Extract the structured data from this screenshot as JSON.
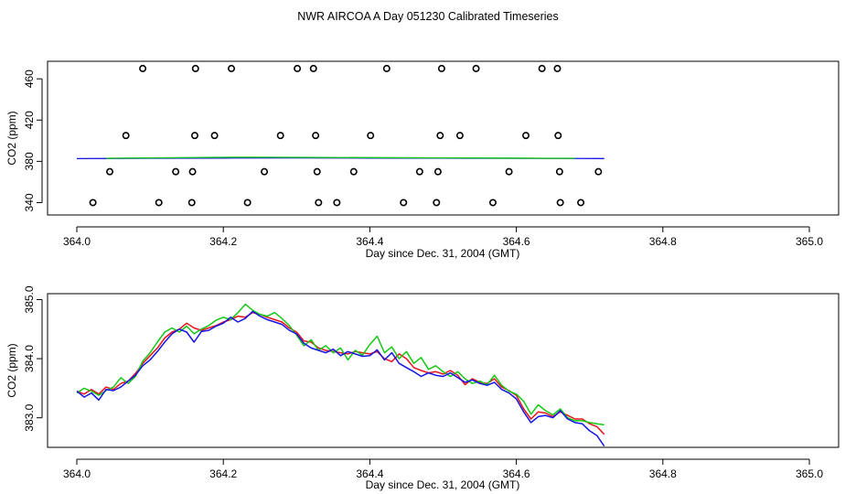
{
  "title": "NWR AIRCOA A  Day 051230  Calibrated Timeseries",
  "colors": {
    "red": "#e8141e",
    "green": "#14c814",
    "blue": "#1414e6",
    "black": "#000000"
  },
  "chart_data": [
    {
      "type": "scatter",
      "xlabel": "Day since Dec. 31, 2004 (GMT)",
      "ylabel": "CO2 (ppm)",
      "xlim": [
        364.0,
        365.0
      ],
      "ylim": [
        328,
        477
      ],
      "x_ticks": [
        364.0,
        364.2,
        364.4,
        364.6,
        364.8,
        365.0
      ],
      "x_tick_labels": [
        "364.0",
        "364.2",
        "364.4",
        "364.6",
        "364.8",
        "365.0"
      ],
      "y_ticks": [
        340,
        380,
        420,
        460
      ],
      "y_tick_labels": [
        "340",
        "380",
        "420",
        "460"
      ],
      "points": [
        {
          "x": 364.022,
          "y": 340
        },
        {
          "x": 364.045,
          "y": 370
        },
        {
          "x": 364.067,
          "y": 405
        },
        {
          "x": 364.09,
          "y": 470
        },
        {
          "x": 364.112,
          "y": 340
        },
        {
          "x": 364.135,
          "y": 370
        },
        {
          "x": 364.157,
          "y": 340
        },
        {
          "x": 364.158,
          "y": 370
        },
        {
          "x": 364.161,
          "y": 405
        },
        {
          "x": 364.162,
          "y": 470
        },
        {
          "x": 364.188,
          "y": 405
        },
        {
          "x": 364.211,
          "y": 470
        },
        {
          "x": 364.233,
          "y": 340
        },
        {
          "x": 364.256,
          "y": 370
        },
        {
          "x": 364.278,
          "y": 405
        },
        {
          "x": 364.301,
          "y": 470
        },
        {
          "x": 364.323,
          "y": 470
        },
        {
          "x": 364.326,
          "y": 405
        },
        {
          "x": 364.328,
          "y": 370
        },
        {
          "x": 364.33,
          "y": 340
        },
        {
          "x": 364.355,
          "y": 340
        },
        {
          "x": 364.378,
          "y": 370
        },
        {
          "x": 364.401,
          "y": 405
        },
        {
          "x": 364.423,
          "y": 470
        },
        {
          "x": 364.446,
          "y": 340
        },
        {
          "x": 364.468,
          "y": 370
        },
        {
          "x": 364.491,
          "y": 340
        },
        {
          "x": 364.493,
          "y": 370
        },
        {
          "x": 364.496,
          "y": 405
        },
        {
          "x": 364.498,
          "y": 470
        },
        {
          "x": 364.523,
          "y": 405
        },
        {
          "x": 364.545,
          "y": 470
        },
        {
          "x": 364.568,
          "y": 340
        },
        {
          "x": 364.59,
          "y": 370
        },
        {
          "x": 364.613,
          "y": 405
        },
        {
          "x": 364.635,
          "y": 470
        },
        {
          "x": 364.656,
          "y": 470
        },
        {
          "x": 364.657,
          "y": 405
        },
        {
          "x": 364.659,
          "y": 370
        },
        {
          "x": 364.66,
          "y": 340
        },
        {
          "x": 364.688,
          "y": 340
        },
        {
          "x": 364.712,
          "y": 370
        }
      ],
      "series": [
        {
          "name": "blue",
          "color": "#1414e6",
          "x": [
            364.0,
            364.1,
            364.2,
            364.3,
            364.4,
            364.5,
            364.6,
            364.72
          ],
          "y": [
            382.6,
            383.0,
            383.2,
            383.3,
            383.2,
            383.1,
            382.9,
            382.7
          ]
        },
        {
          "name": "green",
          "color": "#14c814",
          "x": [
            364.04,
            364.09,
            364.21,
            364.26,
            364.58,
            364.6,
            364.64,
            364.68
          ],
          "y": [
            383.0,
            383.3,
            384.0,
            384.0,
            383.2,
            383.2,
            383.0,
            383.0
          ]
        }
      ]
    },
    {
      "type": "line",
      "xlabel": "Day since Dec. 31, 2004 (GMT)",
      "ylabel": "CO2 (ppm)",
      "xlim": [
        364.0,
        365.0
      ],
      "ylim": [
        382.5,
        385.1
      ],
      "x_ticks": [
        364.0,
        364.2,
        364.4,
        364.6,
        364.8,
        365.0
      ],
      "x_tick_labels": [
        "364.0",
        "364.2",
        "364.4",
        "364.6",
        "364.8",
        "365.0"
      ],
      "y_ticks": [
        383.0,
        384.0,
        385.0
      ],
      "y_tick_labels": [
        "383.0",
        "384.0",
        "385.0"
      ],
      "x": [
        364.0,
        364.01,
        364.02,
        364.03,
        364.04,
        364.05,
        364.06,
        364.07,
        364.08,
        364.09,
        364.1,
        364.11,
        364.12,
        364.13,
        364.14,
        364.15,
        364.16,
        364.17,
        364.18,
        364.19,
        364.2,
        364.21,
        364.22,
        364.23,
        364.24,
        364.25,
        364.26,
        364.27,
        364.28,
        364.29,
        364.3,
        364.31,
        364.32,
        364.33,
        364.34,
        364.35,
        364.36,
        364.37,
        364.38,
        364.39,
        364.4,
        364.41,
        364.42,
        364.43,
        364.44,
        364.45,
        364.46,
        364.47,
        364.48,
        364.49,
        364.5,
        364.51,
        364.52,
        364.53,
        364.54,
        364.55,
        364.56,
        364.57,
        364.58,
        364.59,
        364.6,
        364.61,
        364.62,
        364.63,
        364.64,
        364.65,
        364.66,
        364.67,
        364.68,
        364.69,
        364.7,
        364.71,
        364.72
      ],
      "series": [
        {
          "name": "red",
          "color": "#e8141e",
          "values": [
            383.45,
            383.4,
            383.48,
            383.4,
            383.52,
            383.48,
            383.58,
            383.62,
            383.75,
            383.92,
            384.05,
            384.18,
            384.35,
            384.45,
            384.5,
            384.6,
            384.52,
            384.48,
            384.52,
            384.56,
            384.62,
            384.66,
            384.72,
            384.7,
            384.78,
            384.75,
            384.7,
            384.66,
            384.62,
            384.52,
            384.45,
            384.3,
            384.28,
            384.18,
            384.14,
            384.12,
            384.1,
            384.08,
            384.12,
            384.1,
            384.08,
            384.12,
            384.0,
            383.95,
            384.08,
            384.0,
            383.85,
            383.8,
            383.76,
            383.78,
            383.74,
            383.8,
            383.72,
            383.56,
            383.66,
            383.6,
            383.58,
            383.66,
            383.52,
            383.46,
            383.38,
            383.15,
            382.98,
            383.1,
            383.08,
            383.02,
            383.1,
            383.04,
            382.98,
            382.98,
            382.9,
            382.85,
            382.72
          ]
        },
        {
          "name": "green",
          "color": "#14c814",
          "values": [
            383.42,
            383.5,
            383.45,
            383.38,
            383.46,
            383.52,
            383.68,
            383.58,
            383.7,
            383.96,
            384.1,
            384.28,
            384.45,
            384.52,
            384.45,
            384.55,
            384.42,
            384.5,
            384.56,
            384.65,
            384.7,
            384.66,
            384.78,
            384.92,
            384.82,
            384.75,
            384.72,
            384.78,
            384.68,
            384.56,
            384.4,
            384.22,
            384.32,
            384.14,
            384.22,
            384.1,
            384.18,
            383.98,
            384.14,
            384.06,
            384.24,
            384.38,
            384.1,
            384.2,
            384.0,
            384.12,
            383.92,
            384.02,
            383.82,
            383.88,
            383.78,
            383.7,
            383.78,
            383.66,
            383.58,
            383.62,
            383.56,
            383.72,
            383.55,
            383.45,
            383.4,
            383.28,
            383.06,
            383.22,
            383.12,
            383.05,
            383.15,
            383.0,
            382.95,
            382.95,
            382.92,
            382.9,
            382.88
          ]
        },
        {
          "name": "blue",
          "color": "#1414e6",
          "values": [
            383.45,
            383.35,
            383.42,
            383.3,
            383.48,
            383.46,
            383.52,
            383.62,
            383.72,
            383.88,
            383.98,
            384.12,
            384.28,
            384.42,
            384.5,
            384.45,
            384.28,
            384.46,
            384.48,
            384.55,
            384.6,
            384.7,
            384.62,
            384.68,
            384.8,
            384.72,
            384.66,
            384.62,
            384.58,
            384.48,
            384.42,
            384.26,
            384.18,
            384.14,
            384.1,
            384.16,
            384.05,
            384.12,
            384.08,
            384.04,
            384.05,
            384.15,
            383.98,
            384.1,
            383.92,
            383.85,
            383.78,
            383.7,
            383.76,
            383.72,
            383.7,
            383.76,
            383.68,
            383.6,
            383.64,
            383.58,
            383.55,
            383.6,
            383.48,
            383.42,
            383.32,
            383.1,
            382.92,
            383.02,
            383.04,
            383.0,
            383.12,
            382.98,
            382.92,
            382.9,
            382.78,
            382.7,
            382.52
          ]
        }
      ]
    }
  ]
}
